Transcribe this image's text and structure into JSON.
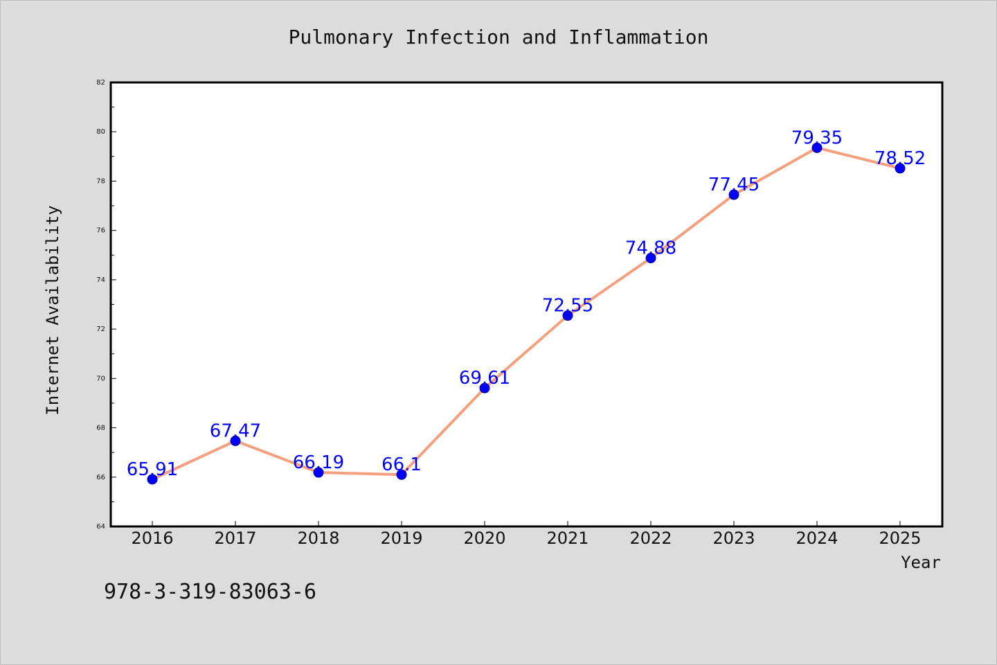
{
  "chart_data": {
    "type": "line",
    "title": "Pulmonary Infection and Inflammation",
    "xlabel": "Year",
    "ylabel": "Internet Availability",
    "categories": [
      "2016",
      "2017",
      "2018",
      "2019",
      "2020",
      "2021",
      "2022",
      "2023",
      "2024",
      "2025"
    ],
    "values": [
      65.91,
      67.47,
      66.19,
      66.1,
      69.61,
      72.55,
      74.88,
      77.45,
      79.35,
      78.52
    ],
    "data_labels": [
      "65.91",
      "67.47",
      "66.19",
      "66.1",
      "69.61",
      "72.55",
      "74.88",
      "77.45",
      "79.35",
      "78.52"
    ],
    "ylim": [
      64,
      82
    ],
    "yticks": [
      64,
      66,
      68,
      70,
      72,
      74,
      76,
      78,
      80,
      82
    ],
    "grid": false,
    "colors": {
      "line": "#f4a07e",
      "marker": "#0000ff",
      "label": "#0000ff"
    }
  },
  "footer": {
    "text": "978-3-319-83063-6"
  }
}
